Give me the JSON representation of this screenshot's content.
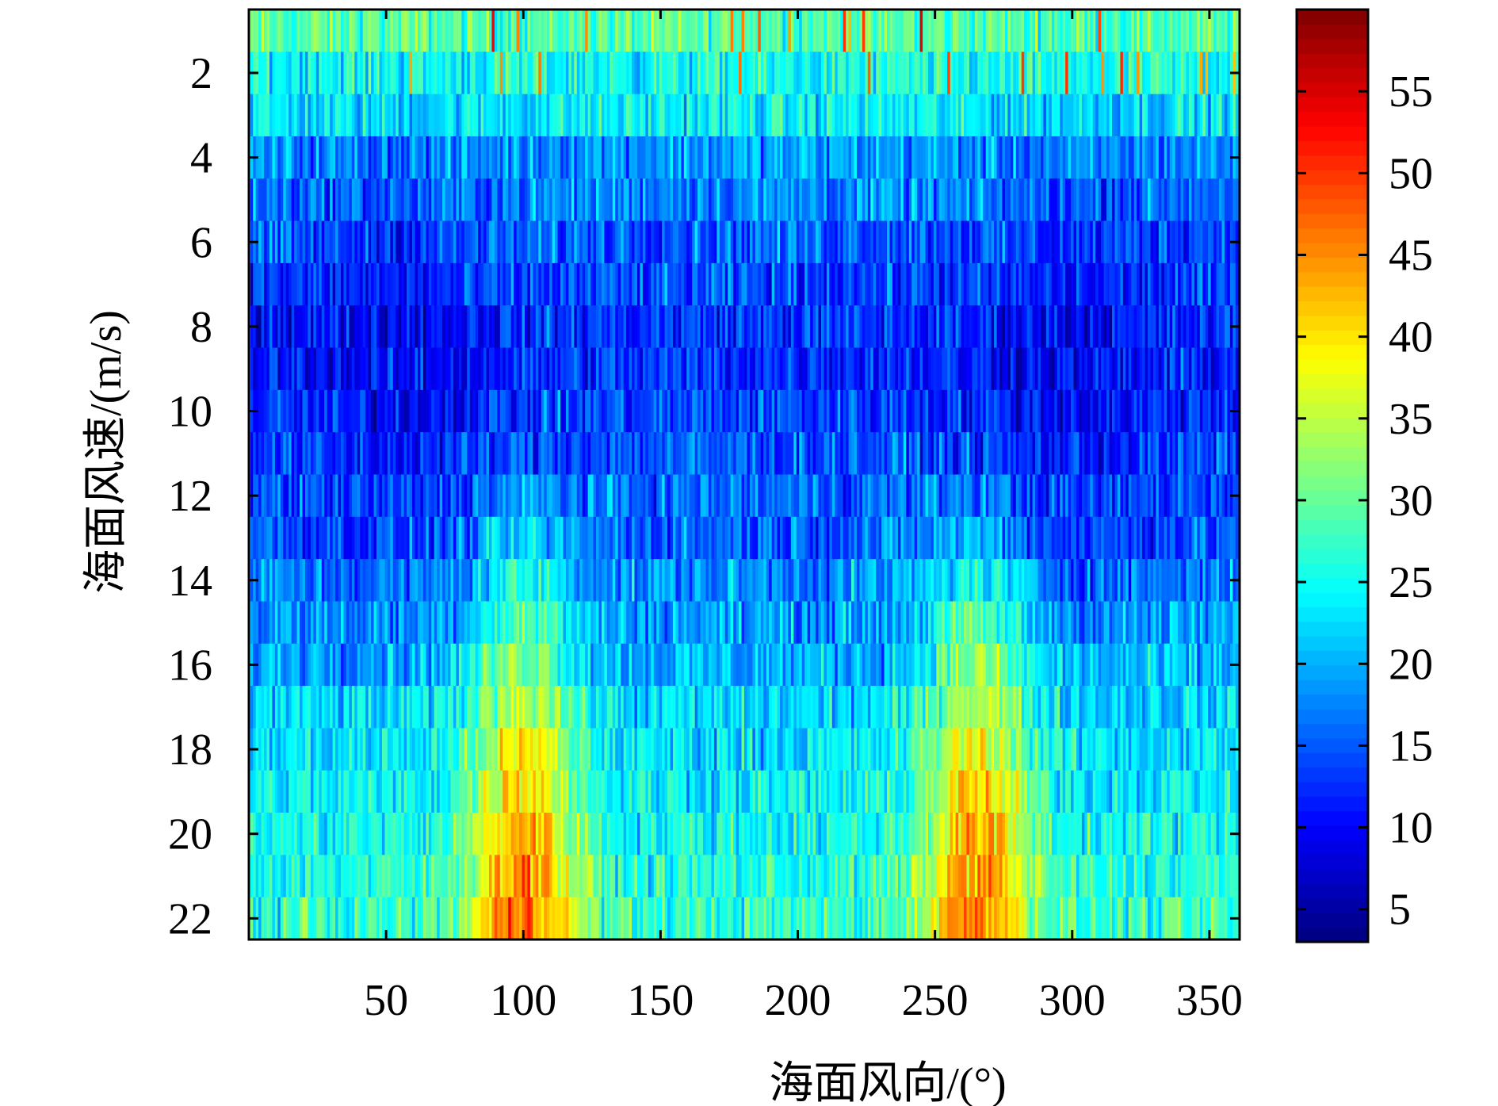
{
  "chart_data": {
    "type": "heatmap",
    "title": "",
    "xlabel": "海面风向/(°)",
    "ylabel": "海面风速/(m/s)",
    "x_range": [
      1,
      360
    ],
    "y_range": [
      1,
      22
    ],
    "xlim": [
      0,
      361
    ],
    "ylim": [
      0.5,
      22.5
    ],
    "x_ticks": [
      50,
      100,
      150,
      200,
      250,
      300,
      350
    ],
    "y_ticks": [
      2,
      4,
      6,
      8,
      10,
      12,
      14,
      16,
      18,
      20,
      22
    ],
    "colorbar": {
      "colormap": "jet",
      "range": [
        3,
        60
      ],
      "ticks": [
        5,
        10,
        15,
        20,
        25,
        30,
        35,
        40,
        45,
        50,
        55
      ]
    },
    "row_means": [
      {
        "wind_speed": 1,
        "mean": 29
      },
      {
        "wind_speed": 2,
        "mean": 25
      },
      {
        "wind_speed": 3,
        "mean": 24
      },
      {
        "wind_speed": 4,
        "mean": 19
      },
      {
        "wind_speed": 5,
        "mean": 18
      },
      {
        "wind_speed": 6,
        "mean": 16
      },
      {
        "wind_speed": 7,
        "mean": 14
      },
      {
        "wind_speed": 8,
        "mean": 13
      },
      {
        "wind_speed": 9,
        "mean": 13
      },
      {
        "wind_speed": 10,
        "mean": 14
      },
      {
        "wind_speed": 11,
        "mean": 15
      },
      {
        "wind_speed": 12,
        "mean": 16
      },
      {
        "wind_speed": 13,
        "mean": 16
      },
      {
        "wind_speed": 14,
        "mean": 18
      },
      {
        "wind_speed": 15,
        "mean": 19
      },
      {
        "wind_speed": 16,
        "mean": 20
      },
      {
        "wind_speed": 17,
        "mean": 22
      },
      {
        "wind_speed": 18,
        "mean": 23
      },
      {
        "wind_speed": 19,
        "mean": 24
      },
      {
        "wind_speed": 20,
        "mean": 25
      },
      {
        "wind_speed": 21,
        "mean": 26
      },
      {
        "wind_speed": 22,
        "mean": 27
      }
    ],
    "peak_directions": [
      {
        "direction": 100,
        "value_at_high_wind": 48
      },
      {
        "direction": 265,
        "value_at_high_wind": 47
      }
    ],
    "crosswind_minima": [
      {
        "direction": 50,
        "value_at_mid_wind": 9
      },
      {
        "direction": 300,
        "value_at_mid_wind": 9
      }
    ]
  }
}
